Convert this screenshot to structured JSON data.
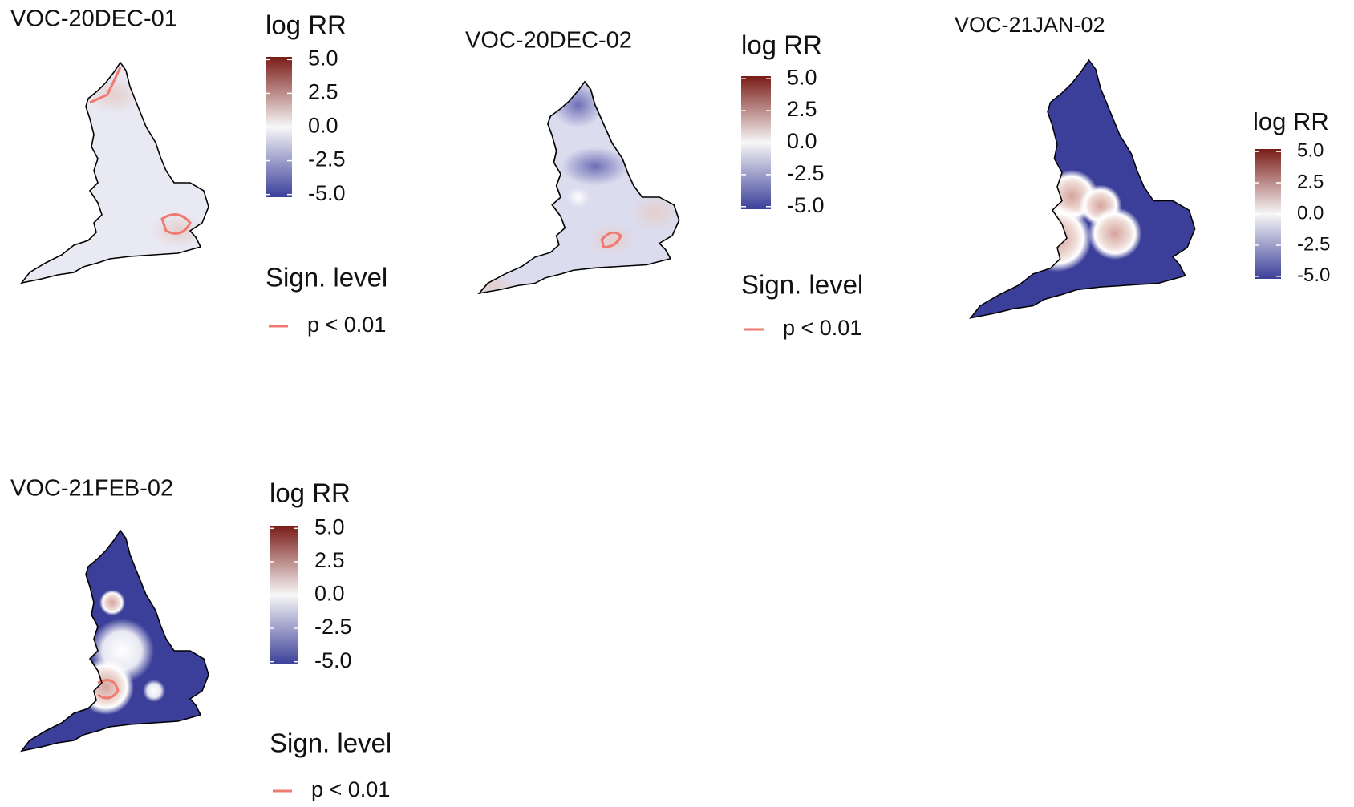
{
  "panels": [
    {
      "title": "VOC-20DEC-01",
      "legend_title": "log RR",
      "scale_lim": [
        -5.2,
        5.2
      ],
      "scale_ticks": [
        {
          "value": 5,
          "label": "5.0"
        },
        {
          "value": 2.5,
          "label": "2.5"
        },
        {
          "value": 0,
          "label": "0.0"
        },
        {
          "value": -2.5,
          "label": "-2.5"
        },
        {
          "value": -5,
          "label": "-5.0"
        }
      ],
      "scale_colors": [
        "#3b3f99",
        "#f7f7f7",
        "#7a1c17"
      ],
      "significance": {
        "title": "Sign. level",
        "label": "p < 0.01",
        "color": "#f07a70"
      }
    },
    {
      "title": "VOC-20DEC-02",
      "legend_title": "log RR",
      "scale_lim": [
        -5.2,
        5.2
      ],
      "scale_ticks": [
        {
          "value": 5,
          "label": "5.0"
        },
        {
          "value": 2.5,
          "label": "2.5"
        },
        {
          "value": 0,
          "label": "0.0"
        },
        {
          "value": -2.5,
          "label": "-2.5"
        },
        {
          "value": -5,
          "label": "-5.0"
        }
      ],
      "scale_colors": [
        "#3b3f99",
        "#f7f7f7",
        "#7a1c17"
      ],
      "significance": {
        "title": "Sign. level",
        "label": "p < 0.01",
        "color": "#f07a70"
      }
    },
    {
      "title": "VOC-21JAN-02",
      "legend_title": "log RR",
      "scale_lim": [
        -5.2,
        5.2
      ],
      "scale_ticks": [
        {
          "value": 5,
          "label": "5.0"
        },
        {
          "value": 2.5,
          "label": "2.5"
        },
        {
          "value": 0,
          "label": "0.0"
        },
        {
          "value": -2.5,
          "label": "-2.5"
        },
        {
          "value": -5,
          "label": "-5.0"
        }
      ],
      "scale_colors": [
        "#3b3f99",
        "#f7f7f7",
        "#7a1c17"
      ]
    },
    {
      "title": "VOC-21FEB-02",
      "legend_title": "log RR",
      "scale_lim": [
        -5.2,
        5.2
      ],
      "scale_ticks": [
        {
          "value": 5,
          "label": "5.0"
        },
        {
          "value": 2.5,
          "label": "2.5"
        },
        {
          "value": 0,
          "label": "0.0"
        },
        {
          "value": -2.5,
          "label": "-2.5"
        },
        {
          "value": -5,
          "label": "-5.0"
        }
      ],
      "scale_colors": [
        "#3b3f99",
        "#f7f7f7",
        "#7a1c17"
      ],
      "significance": {
        "title": "Sign. level",
        "label": "p < 0.01",
        "color": "#f07a70"
      }
    }
  ]
}
